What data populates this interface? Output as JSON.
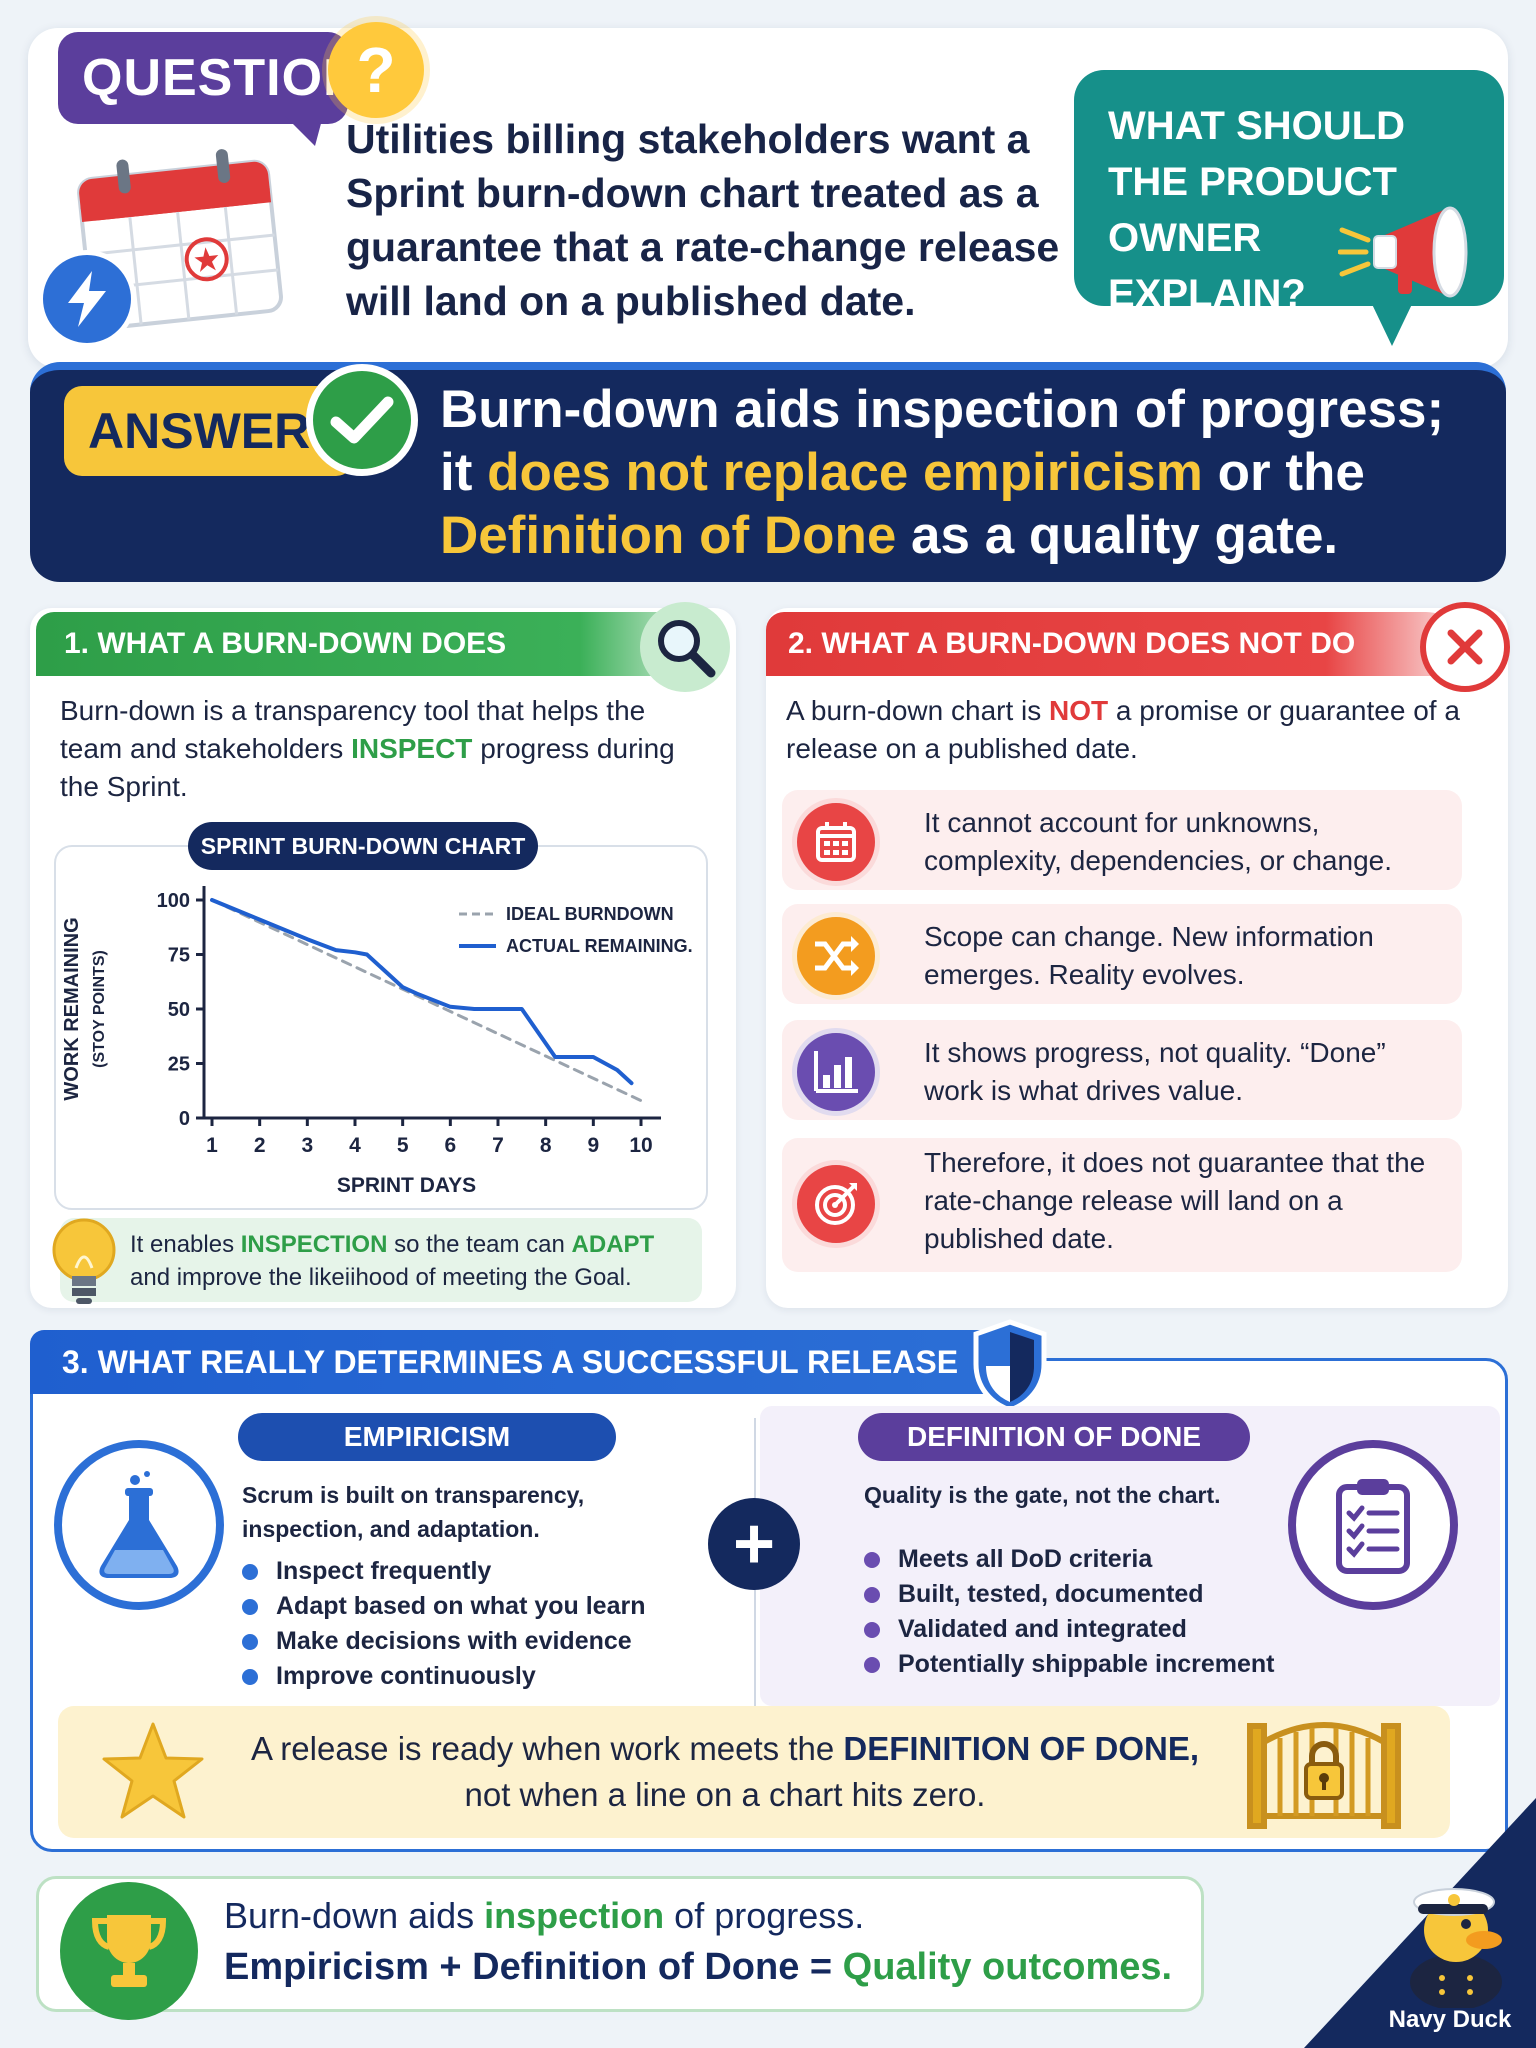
{
  "header": {
    "question_badge": "QUESTION:",
    "question_mark": "?",
    "question_text": "Utilities billing stakeholders want a Sprint burn-down chart treated as a guarantee that a rate-change release will land on a published date.",
    "callout": "WHAT SHOULD THE PRODUCT OWNER EXPLAIN?"
  },
  "answer": {
    "badge": "ANSWER:",
    "text_1": "Burn-down aids inspection of progress; it ",
    "highlight_1": "does not replace empiricism",
    "text_2": " or the ",
    "highlight_2": "Definition of Done",
    "text_3": " as a quality gate."
  },
  "section1": {
    "title": "1. WHAT A BURN-DOWN DOES",
    "intro_1": "Burn-down is a transparency tool that helps the team and stakeholders ",
    "intro_highlight": "INSPECT",
    "intro_2": " progress during the Sprint.",
    "chart_title": "SPRINT BURN-DOWN CHART",
    "tip_1": "It enables ",
    "tip_highlight_1": "INSPECTION",
    "tip_2": " so the team can ",
    "tip_highlight_2": "ADAPT",
    "tip_3": " and improve the likeiihood of meeting the Goal."
  },
  "chart_data": {
    "type": "line",
    "title": "SPRINT BURN-DOWN CHART",
    "xlabel": "SPRINT DAYS",
    "ylabel": "WORK REMAINING",
    "ylabel_sub": "(STOY POINTS)",
    "x": [
      1,
      2,
      3,
      4,
      5,
      6,
      7,
      8,
      9,
      10
    ],
    "ylim": [
      0,
      100
    ],
    "yticks": [
      0,
      25,
      50,
      75,
      100
    ],
    "legend_position": "top-right",
    "series": [
      {
        "name": "IDEAL BURNDOWN",
        "style": "dashed",
        "color": "#9aa3ad",
        "points": [
          [
            1,
            100
          ],
          [
            10,
            8
          ]
        ]
      },
      {
        "name": "ACTUAL REMAINING.",
        "style": "solid",
        "color": "#1f5fcf",
        "points": [
          [
            1,
            100
          ],
          [
            2,
            91
          ],
          [
            3,
            82
          ],
          [
            3.6,
            77
          ],
          [
            4,
            76
          ],
          [
            4.25,
            75
          ],
          [
            5,
            60
          ],
          [
            5.3,
            57
          ],
          [
            6,
            51
          ],
          [
            6.5,
            50
          ],
          [
            7.5,
            50
          ],
          [
            8.2,
            28
          ],
          [
            9,
            28
          ],
          [
            9.5,
            22
          ],
          [
            9.8,
            16
          ]
        ]
      }
    ]
  },
  "section2": {
    "title": "2. WHAT A BURN-DOWN DOES NOT DO",
    "intro_1": "A burn-down chart is ",
    "intro_highlight": "NOT",
    "intro_2": " a promise or guarantee of a release on a published date.",
    "items": [
      {
        "icon": "calendar-icon",
        "color": "#e84545",
        "text": "It cannot account for unknowns, complexity, dependencies, or change."
      },
      {
        "icon": "shuffle-icon",
        "color": "#f39c1f",
        "text": "Scope can change. New information emerges. Reality evolves."
      },
      {
        "icon": "bar-chart-icon",
        "color": "#6a4db0",
        "text": "It shows progress, not quality. “Done” work is what drives value."
      },
      {
        "icon": "target-icon",
        "color": "#e84545",
        "text": "Therefore, it does not guarantee that the rate-change release will land on a published date."
      }
    ]
  },
  "section3": {
    "title": "3. WHAT REALLY DETERMINES A SUCCESSFUL RELEASE",
    "empiricism": {
      "title": "EMPIRICISM",
      "desc": "Scrum is built on transparency, inspection, and adaptation.",
      "items": [
        "Inspect frequently",
        "Adapt based on what you learn",
        "Make decisions with evidence",
        "Improve continuously"
      ]
    },
    "plus": "+",
    "dod": {
      "title": "DEFINITION OF DONE",
      "desc": "Quality is the gate, not the chart.",
      "items": [
        "Meets all DoD criteria",
        "Built, tested, documented",
        "Validated and integrated",
        "Potentially shippable increment"
      ]
    },
    "release_1": "A release is ready when work meets the ",
    "release_bold": "DEFINITION OF DONE,",
    "release_2": " not when a line on a chart hits zero."
  },
  "footer": {
    "line1_a": "Burn-down aids ",
    "line1_highlight": "inspection",
    "line1_b": " of progress.",
    "line2_a": "Empiricism + Definition of Done = ",
    "line2_highlight": "Quality outcomes."
  },
  "brand": "Navy Duck",
  "colors": {
    "navy": "#14295e",
    "green": "#2e9e48",
    "red": "#e03a3a",
    "purple": "#5b3e9c",
    "teal": "#16908a",
    "yellow": "#f7c63a",
    "blue": "#2c6fd6"
  }
}
